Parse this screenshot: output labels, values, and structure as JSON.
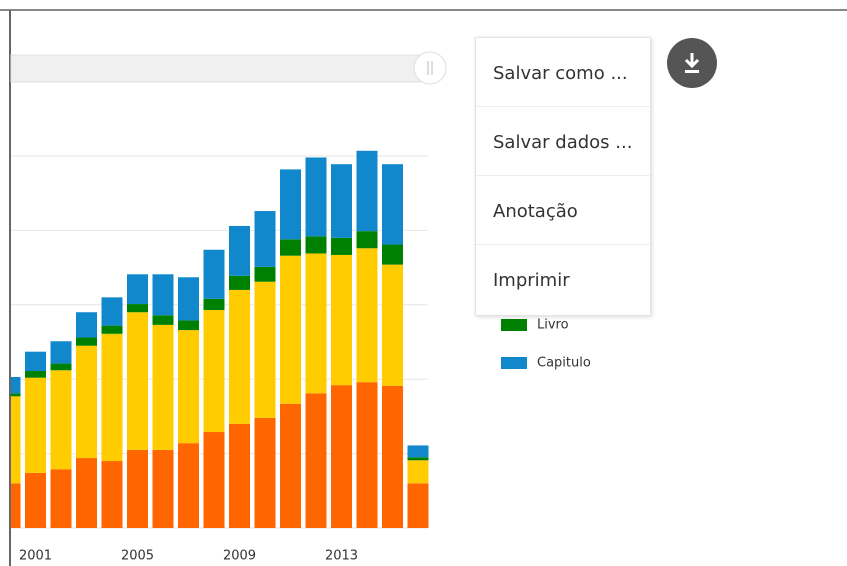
{
  "chart_data": {
    "type": "bar",
    "stacked": true,
    "categories": [
      null,
      "2001",
      null,
      null,
      null,
      "2005",
      null,
      null,
      null,
      "2009",
      null,
      null,
      null,
      "2013",
      null,
      null,
      null
    ],
    "series": [
      {
        "color": "#ff6600",
        "values": [
          0.6,
          0.74,
          0.79,
          0.94,
          0.9,
          1.05,
          1.05,
          1.14,
          1.29,
          1.4,
          1.48,
          1.67,
          1.81,
          1.92,
          1.96,
          1.91,
          0.6
        ]
      },
      {
        "color": "#ffcc00",
        "values": [
          1.17,
          1.28,
          1.33,
          1.51,
          1.71,
          1.85,
          1.68,
          1.52,
          1.64,
          1.8,
          1.83,
          1.99,
          1.88,
          1.75,
          1.8,
          1.63,
          0.31
        ]
      },
      {
        "name": "Livro",
        "color": "#008000",
        "values": [
          0.04,
          0.09,
          0.09,
          0.11,
          0.11,
          0.11,
          0.13,
          0.13,
          0.15,
          0.19,
          0.2,
          0.22,
          0.23,
          0.23,
          0.23,
          0.27,
          0.04
        ]
      },
      {
        "name": "Capitulo",
        "color": "#1188cc",
        "values": [
          0.22,
          0.26,
          0.3,
          0.34,
          0.38,
          0.4,
          0.55,
          0.58,
          0.66,
          0.67,
          0.75,
          0.94,
          1.06,
          0.99,
          1.08,
          1.08,
          0.16
        ]
      }
    ],
    "ylim": [
      0,
      5.3
    ],
    "yticks": [
      0,
      1,
      2,
      3,
      4,
      5
    ],
    "grid": true
  },
  "menu": {
    "items": [
      "Salvar como ...",
      "Salvar dados ...",
      "Anotação",
      "Imprimir"
    ]
  }
}
